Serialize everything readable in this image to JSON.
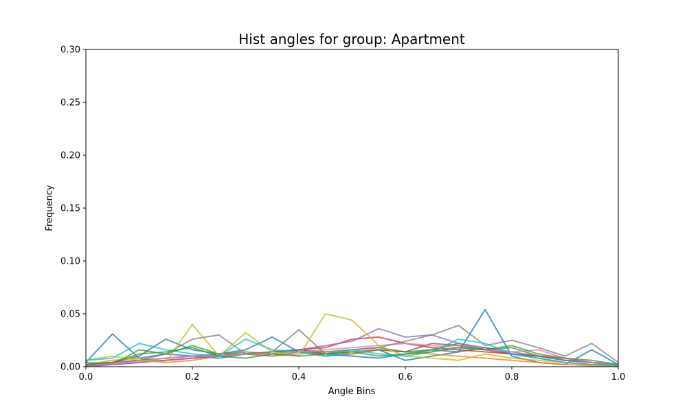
{
  "chart_data": {
    "type": "line",
    "title": "Hist angles for group: Apartment",
    "xlabel": "Angle Bins",
    "ylabel": "Frequency",
    "xlim": [
      0.0,
      1.0
    ],
    "ylim": [
      0.0,
      0.3
    ],
    "xticks": [
      "0.0",
      "0.2",
      "0.4",
      "0.6",
      "0.8",
      "1.0"
    ],
    "yticks": [
      "0.00",
      "0.05",
      "0.10",
      "0.15",
      "0.20",
      "0.25",
      "0.30"
    ],
    "grid": false,
    "legend": "none",
    "line_alpha": 0.75,
    "x": [
      0.0,
      0.05,
      0.1,
      0.15,
      0.2,
      0.25,
      0.3,
      0.35,
      0.4,
      0.45,
      0.5,
      0.55,
      0.6,
      0.65,
      0.7,
      0.75,
      0.8,
      0.85,
      0.9,
      0.95,
      1.0
    ],
    "series": [
      {
        "color": "#1f77b4",
        "values": [
          0.002,
          0.004,
          0.01,
          0.026,
          0.016,
          0.012,
          0.016,
          0.028,
          0.014,
          0.01,
          0.012,
          0.016,
          0.006,
          0.01,
          0.014,
          0.054,
          0.01,
          0.004,
          0.002,
          0.016,
          0.002
        ]
      },
      {
        "color": "#1f77b4",
        "values": [
          0.004,
          0.031,
          0.008,
          0.012,
          0.01,
          0.008,
          0.012,
          0.01,
          0.014,
          0.012,
          0.01,
          0.008,
          0.012,
          0.016,
          0.014,
          0.018,
          0.012,
          0.008,
          0.004,
          0.002,
          0.002
        ]
      },
      {
        "color": "#ff7f0e",
        "values": [
          0.002,
          0.006,
          0.008,
          0.004,
          0.006,
          0.01,
          0.012,
          0.01,
          0.012,
          0.014,
          0.012,
          0.016,
          0.014,
          0.012,
          0.01,
          0.008,
          0.006,
          0.004,
          0.002,
          0.001,
          0.0
        ]
      },
      {
        "color": "#2ca02c",
        "values": [
          0.004,
          0.002,
          0.016,
          0.012,
          0.02,
          0.012,
          0.014,
          0.012,
          0.016,
          0.014,
          0.016,
          0.018,
          0.014,
          0.016,
          0.022,
          0.016,
          0.018,
          0.01,
          0.006,
          0.004,
          0.002
        ]
      },
      {
        "color": "#d62728",
        "values": [
          0.001,
          0.002,
          0.004,
          0.006,
          0.008,
          0.01,
          0.012,
          0.014,
          0.016,
          0.018,
          0.026,
          0.028,
          0.022,
          0.018,
          0.016,
          0.014,
          0.012,
          0.01,
          0.006,
          0.004,
          0.002
        ]
      },
      {
        "color": "#9467bd",
        "values": [
          0.0,
          0.002,
          0.004,
          0.006,
          0.008,
          0.01,
          0.012,
          0.014,
          0.016,
          0.02,
          0.024,
          0.036,
          0.028,
          0.03,
          0.022,
          0.018,
          0.014,
          0.01,
          0.006,
          0.004,
          0.001
        ]
      },
      {
        "color": "#8c564b",
        "values": [
          0.002,
          0.004,
          0.006,
          0.008,
          0.01,
          0.012,
          0.012,
          0.014,
          0.016,
          0.012,
          0.014,
          0.016,
          0.014,
          0.022,
          0.02,
          0.016,
          0.012,
          0.01,
          0.008,
          0.004,
          0.002
        ]
      },
      {
        "color": "#e377c2",
        "values": [
          0.001,
          0.003,
          0.005,
          0.008,
          0.01,
          0.01,
          0.012,
          0.012,
          0.014,
          0.016,
          0.018,
          0.02,
          0.022,
          0.02,
          0.018,
          0.016,
          0.014,
          0.016,
          0.008,
          0.004,
          0.002
        ]
      },
      {
        "color": "#7f7f7f",
        "values": [
          0.002,
          0.004,
          0.006,
          0.012,
          0.026,
          0.03,
          0.012,
          0.014,
          0.035,
          0.012,
          0.016,
          0.018,
          0.024,
          0.03,
          0.039,
          0.02,
          0.025,
          0.018,
          0.01,
          0.022,
          0.004
        ]
      },
      {
        "color": "#bcbd22",
        "values": [
          0.006,
          0.01,
          0.006,
          0.004,
          0.04,
          0.01,
          0.032,
          0.014,
          0.01,
          0.05,
          0.044,
          0.02,
          0.01,
          0.008,
          0.006,
          0.012,
          0.008,
          0.006,
          0.004,
          0.002,
          0.001
        ]
      },
      {
        "color": "#17becf",
        "values": [
          0.006,
          0.008,
          0.022,
          0.016,
          0.012,
          0.01,
          0.026,
          0.016,
          0.014,
          0.01,
          0.016,
          0.012,
          0.01,
          0.014,
          0.026,
          0.022,
          0.012,
          0.008,
          0.004,
          0.002,
          0.001
        ]
      },
      {
        "color": "#2ca02c",
        "values": [
          0.002,
          0.004,
          0.012,
          0.014,
          0.018,
          0.01,
          0.008,
          0.012,
          0.01,
          0.012,
          0.014,
          0.01,
          0.012,
          0.014,
          0.018,
          0.016,
          0.02,
          0.012,
          0.008,
          0.006,
          0.002
        ]
      }
    ]
  }
}
